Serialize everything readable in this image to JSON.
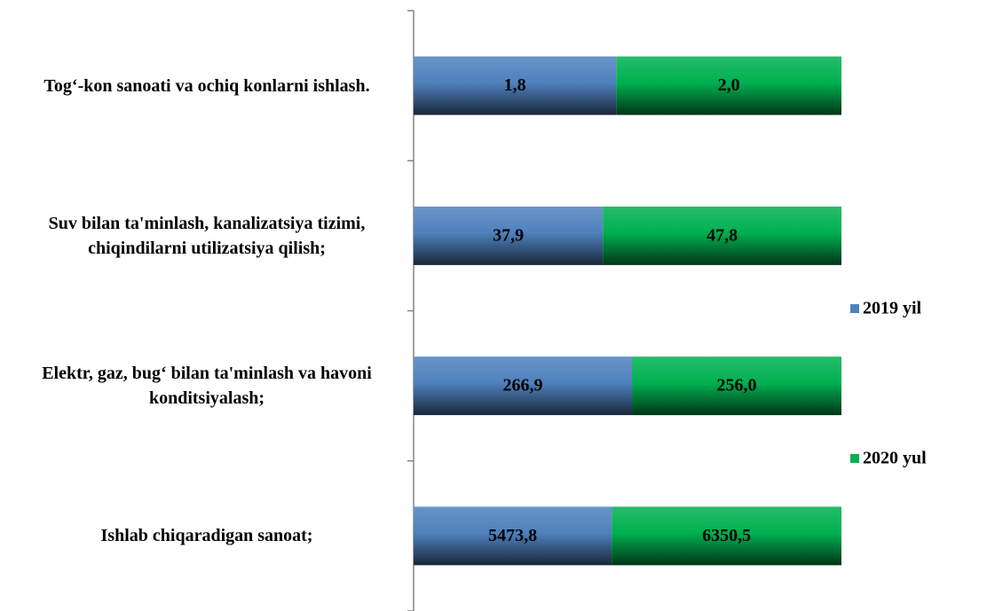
{
  "chart_data": {
    "type": "bar",
    "orientation": "horizontal",
    "stacking": "percent",
    "categories": [
      "Tog‘-kon sanoati va ochiq konlarni ishlash.",
      "Suv bilan ta'minlash, kanalizatsiya tizimi, chiqindilarni utilizatsiya qilish;",
      "Elektr, gaz, bug‘ bilan ta'minlash va havoni konditsiyalash;",
      "Ishlab chiqaradigan sanoat;"
    ],
    "series": [
      {
        "name": "2019 yil",
        "color": "#4f81bd",
        "values": [
          1.8,
          37.9,
          266.9,
          5473.8
        ],
        "value_labels": [
          "1,8",
          "37,9",
          "266,9",
          "5473,8"
        ]
      },
      {
        "name": "2020 yul",
        "color": "#00b050",
        "values": [
          2.0,
          47.8,
          256.0,
          6350.5
        ],
        "value_labels": [
          "2,0",
          "47,8",
          "256,0",
          "6350,5"
        ]
      }
    ],
    "legend": "right"
  }
}
